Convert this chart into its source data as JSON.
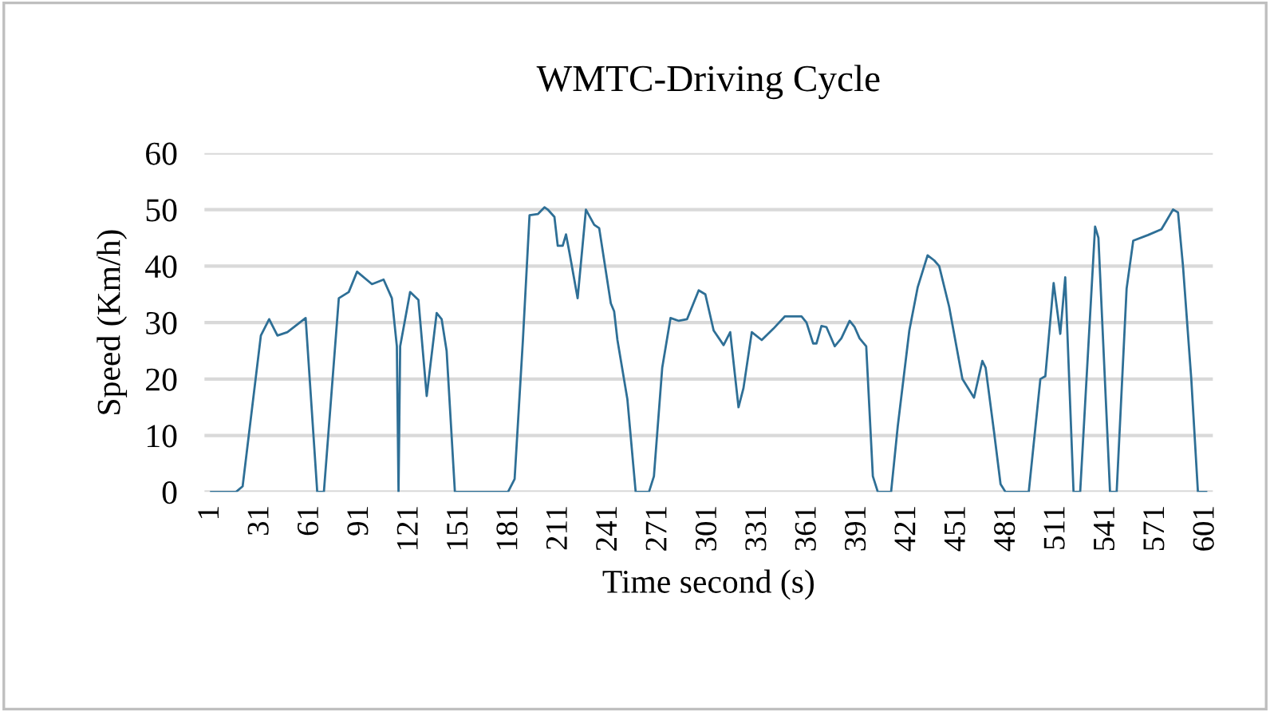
{
  "chart_data": {
    "type": "line",
    "title": "WMTC-Driving Cycle",
    "xlabel": "Time second (s)",
    "ylabel": "Speed (Km/h)",
    "x": [
      1,
      16,
      20,
      31,
      36,
      41,
      47,
      58,
      65,
      69,
      78,
      84,
      89,
      98,
      105,
      110,
      113,
      114,
      115,
      121,
      126,
      131,
      137,
      140,
      143,
      148,
      180,
      184,
      189,
      193,
      198,
      202,
      204,
      208,
      210,
      213,
      215,
      217,
      222,
      227,
      232,
      235,
      242,
      244,
      246,
      252,
      257,
      265,
      268,
      273,
      278,
      283,
      288,
      295,
      299,
      304,
      310,
      314,
      319,
      322,
      327,
      333,
      340,
      347,
      357,
      360,
      364,
      366,
      369,
      372,
      377,
      381,
      386,
      389,
      392,
      396,
      400,
      403,
      411,
      415,
      422,
      427,
      433,
      437,
      440,
      446,
      454,
      461,
      466,
      468,
      473,
      477,
      480,
      494,
      501,
      504,
      509,
      513,
      516,
      521,
      525,
      534,
      536,
      543,
      547,
      553,
      557,
      566,
      574,
      577,
      581,
      584,
      587,
      592,
      596,
      601
    ],
    "series": [
      {
        "color": "#2e6f96",
        "values": [
          0,
          0,
          1,
          27.7,
          30.6,
          27.7,
          28.3,
          30.8,
          0,
          0,
          34.3,
          35.4,
          39,
          36.8,
          37.6,
          34.3,
          25.8,
          0,
          25.8,
          35.4,
          34,
          17,
          31.7,
          30.6,
          25,
          0,
          0,
          2.3,
          26.9,
          49,
          49.2,
          50.4,
          50,
          48.7,
          43.6,
          43.6,
          45.6,
          42.5,
          34.3,
          50,
          47.3,
          46.7,
          33.4,
          32,
          26.9,
          16.4,
          0,
          0,
          2.8,
          22,
          30.8,
          30.3,
          30.6,
          35.7,
          35,
          28.6,
          26,
          28.3,
          15,
          18.4,
          28.3,
          26.9,
          28.9,
          31.1,
          31.1,
          30,
          26.3,
          26.3,
          29.4,
          29.2,
          25.8,
          27.2,
          30.3,
          29.2,
          27.2,
          25.8,
          2.8,
          0,
          0,
          11.6,
          28.6,
          36.2,
          41.9,
          41,
          40,
          32.8,
          20,
          16.7,
          23.2,
          22,
          10.8,
          1.4,
          0,
          0,
          20,
          20.5,
          37,
          28,
          38,
          0,
          0,
          47,
          45,
          0,
          0,
          36,
          44.5,
          45.5,
          46.5,
          48,
          50,
          49.5,
          40,
          20,
          0,
          0
        ]
      }
    ],
    "xlim": [
      -3,
      605
    ],
    "xticks": [
      1,
      31,
      61,
      91,
      121,
      151,
      181,
      211,
      241,
      271,
      301,
      331,
      361,
      391,
      421,
      451,
      481,
      511,
      541,
      571,
      601
    ],
    "ylim": [
      0,
      60
    ],
    "yticks": [
      0,
      10,
      20,
      30,
      40,
      50,
      60
    ],
    "grid": "y",
    "line_style": "solid",
    "marker": "none",
    "legend": false
  }
}
